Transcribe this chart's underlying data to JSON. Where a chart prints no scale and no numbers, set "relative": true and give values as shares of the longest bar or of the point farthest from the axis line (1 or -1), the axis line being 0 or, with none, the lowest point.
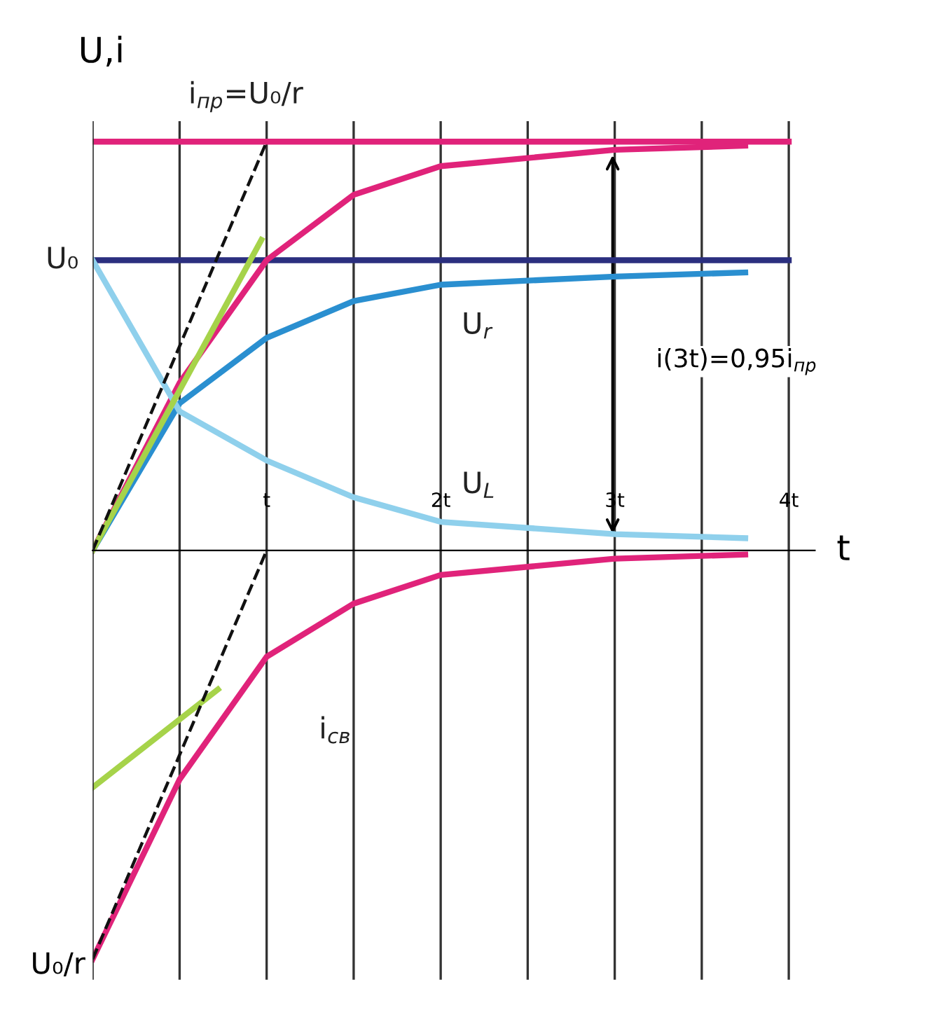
{
  "chart_data": {
    "type": "line",
    "relative": true,
    "ylabel": "U,i",
    "xlabel": "t",
    "x": [
      0,
      0.5,
      1,
      1.5,
      2,
      3,
      3.75
    ],
    "xlim": [
      0,
      4.15
    ],
    "xticks": [
      {
        "value": 0.5,
        "label": null
      },
      {
        "value": 1,
        "label": "t"
      },
      {
        "value": 1.5,
        "label": null
      },
      {
        "value": 2,
        "label": "2t"
      },
      {
        "value": 2.5,
        "label": null
      },
      {
        "value": 3,
        "label": "3t"
      },
      {
        "value": 3.5,
        "label": null
      },
      {
        "value": 4,
        "label": "4t"
      }
    ],
    "grid": "x",
    "line_style": "solid",
    "marker": "none",
    "series": [
      {
        "name": "i$_{пр}$=U₀/r",
        "color": "#e0237a",
        "x": [
          0,
          4
        ],
        "values": [
          1,
          1
        ]
      },
      {
        "name": "U₀",
        "color": "#2b2f7f",
        "x": [
          0,
          4
        ],
        "values": [
          0.71,
          0.71
        ]
      },
      {
        "color": "#e0237a",
        "values": [
          0,
          0.41,
          0.71,
          0.87,
          0.94,
          0.98,
          0.99
        ]
      },
      {
        "name": "U$_{r}$",
        "color": "#2a8fd0",
        "values": [
          0,
          0.36,
          0.52,
          0.61,
          0.65,
          0.67,
          0.68
        ]
      },
      {
        "name": "U$_{L}$",
        "color": "#8fd0ec",
        "values": [
          0.71,
          0.34,
          0.22,
          0.13,
          0.07,
          0.04,
          0.03
        ]
      },
      {
        "name": "i$_{св}$",
        "color": "#e0237a",
        "values": [
          -1,
          -0.56,
          -0.26,
          -0.13,
          -0.06,
          -0.02,
          -0.01
        ]
      },
      {
        "color": "#a6d34a",
        "x": [
          0,
          0.97
        ],
        "values": [
          0,
          0.76
        ]
      },
      {
        "color": "#a6d34a",
        "x": [
          0,
          0.72
        ],
        "values": [
          -0.58,
          -0.34
        ]
      },
      {
        "color": "#111111",
        "line_style": "dashed",
        "x": [
          0,
          1
        ],
        "values": [
          0,
          1
        ]
      },
      {
        "color": "#111111",
        "line_style": "dashed",
        "x": [
          0,
          1
        ],
        "values": [
          -1,
          0
        ]
      }
    ],
    "annotations": [
      "U₀/r",
      "i(3t)=0,95i$_{пр}$"
    ]
  }
}
